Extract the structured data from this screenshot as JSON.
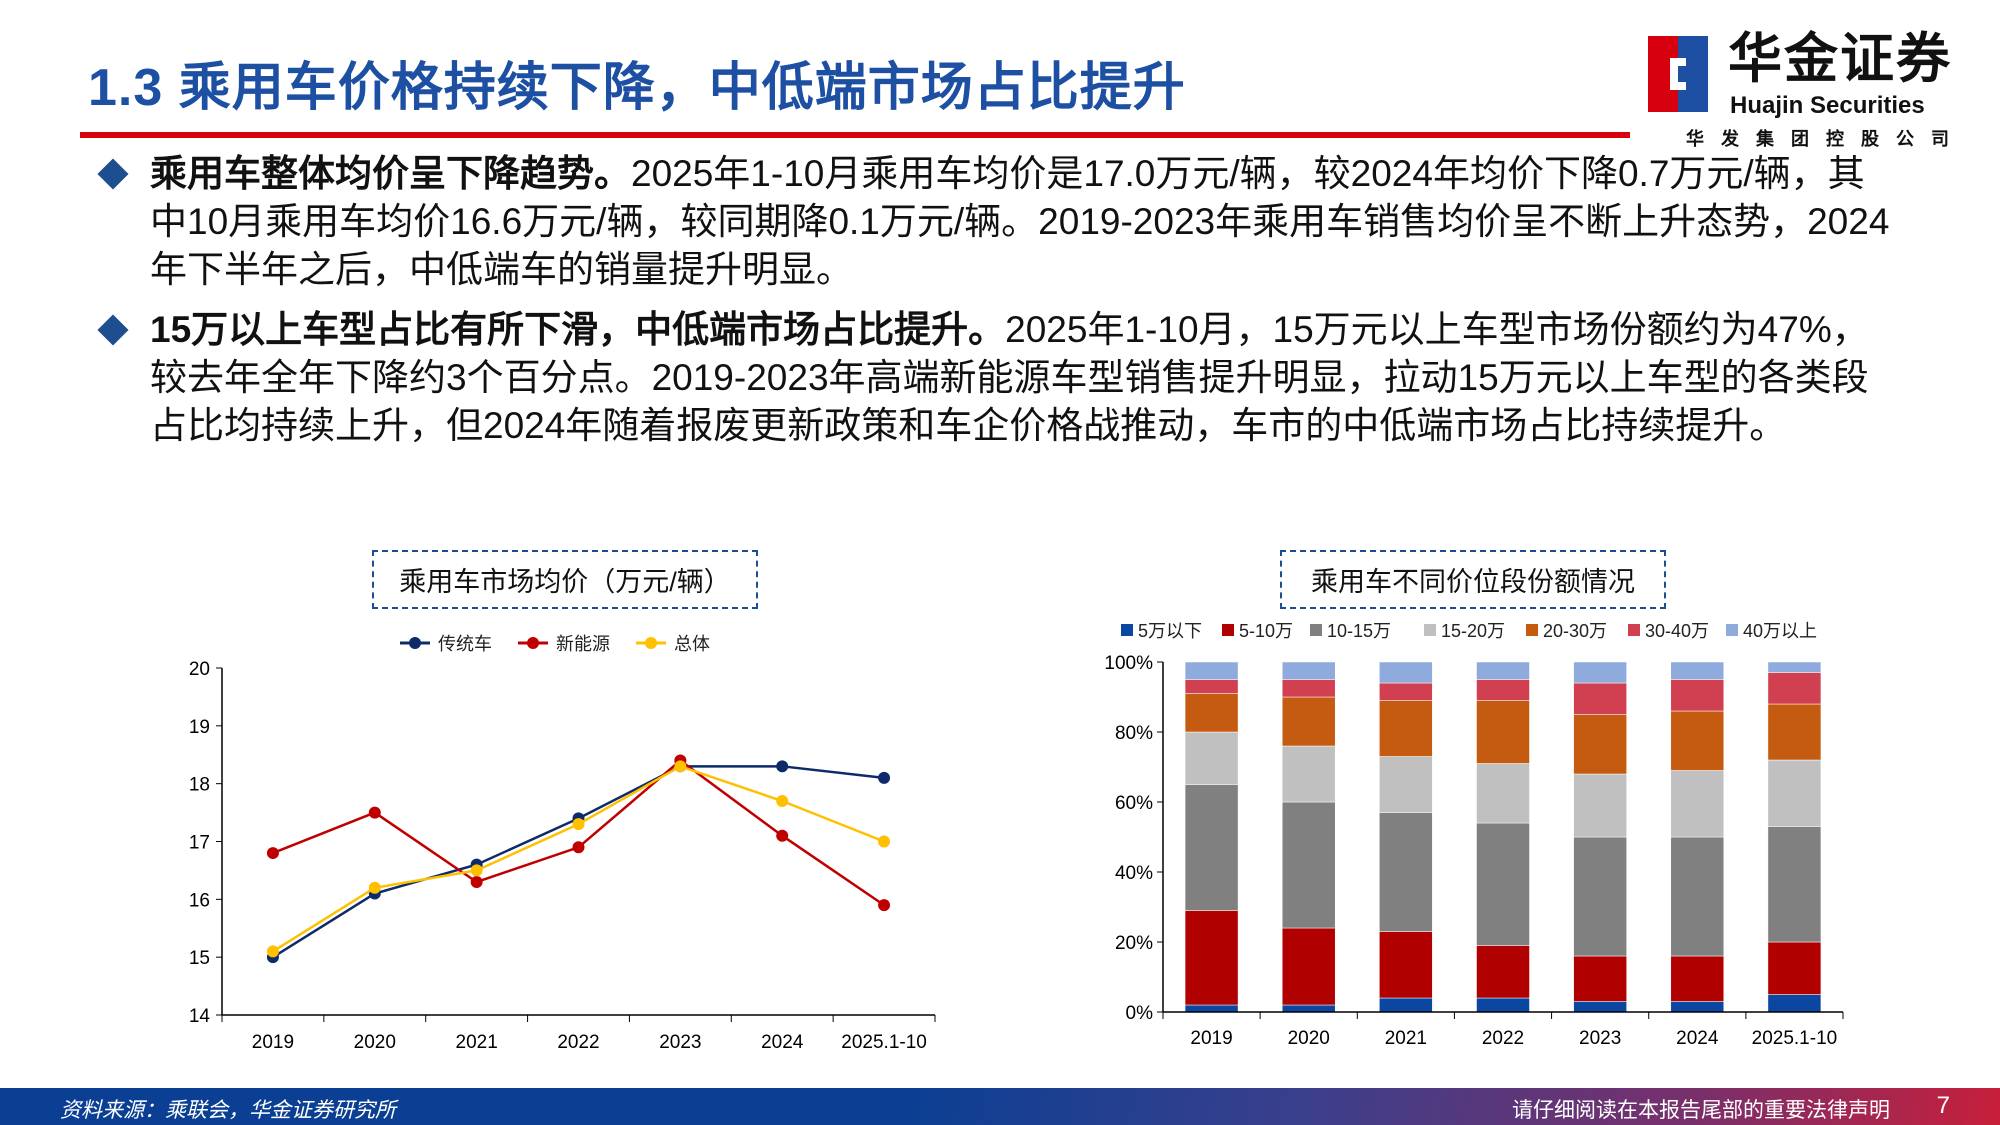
{
  "header": {
    "title": "1.3 乘用车价格持续下降，中低端市场占比提升",
    "logo": {
      "name_cn": "华金证券",
      "name_en": "Huajin Securities",
      "parent": "华发集团控股公司",
      "colors": {
        "red": "#d7000f",
        "blue": "#1d50a2"
      }
    }
  },
  "bullets": [
    {
      "bold": "乘用车整体均价呈下降趋势。",
      "text": "2025年1-10月乘用车均价是17.0万元/辆，较2024年均价下降0.7万元/辆，其中10月乘用车均价16.6万元/辆，较同期降0.1万元/辆。2019-2023年乘用车销售均价呈不断上升态势，2024年下半年之后，中低端车的销量提升明显。"
    },
    {
      "bold": "15万以上车型占比有所下滑，中低端市场占比提升。",
      "text": "2025年1-10月，15万元以上车型市场份额约为47%，较去年全年下降约3个百分点。2019-2023年高端新能源车型销售提升明显，拉动15万元以上车型的各类段占比均持续上升，但2024年随着报废更新政策和车企价格战推动，车市的中低端市场占比持续提升。"
    }
  ],
  "chart_data": [
    {
      "type": "line",
      "title": "乘用车市场均价（万元/辆）",
      "categories": [
        "2019",
        "2020",
        "2021",
        "2022",
        "2023",
        "2024",
        "2025.1-10"
      ],
      "ylim": [
        14,
        20
      ],
      "yticks": [
        "14",
        "15",
        "16",
        "17",
        "18",
        "19",
        "20"
      ],
      "legend_position": "top",
      "grid": false,
      "series": [
        {
          "name": "传统车",
          "color": "#0d2a6b",
          "values": [
            15.0,
            16.1,
            16.6,
            17.4,
            18.3,
            18.3,
            18.1
          ]
        },
        {
          "name": "新能源",
          "color": "#c00000",
          "values": [
            16.8,
            17.5,
            16.3,
            16.9,
            18.4,
            17.1,
            15.9
          ]
        },
        {
          "name": "总体",
          "color": "#ffc000",
          "values": [
            15.1,
            16.2,
            16.5,
            17.3,
            18.3,
            17.7,
            17.0
          ]
        }
      ]
    },
    {
      "type": "bar",
      "stacked": true,
      "title": "乘用车不同价位段份额情况",
      "categories": [
        "2019",
        "2020",
        "2021",
        "2022",
        "2023",
        "2024",
        "2025.1-10"
      ],
      "ylim": [
        0,
        100
      ],
      "yticks": [
        "0%",
        "20%",
        "40%",
        "60%",
        "80%",
        "100%"
      ],
      "legend_position": "top",
      "grid": false,
      "series": [
        {
          "name": "5万以下",
          "color": "#0b47a1",
          "values": [
            2,
            2,
            4,
            4,
            3,
            3,
            5
          ]
        },
        {
          "name": "5-10万",
          "color": "#b00000",
          "values": [
            27,
            22,
            19,
            15,
            13,
            13,
            15
          ]
        },
        {
          "name": "10-15万",
          "color": "#808080",
          "values": [
            36,
            36,
            34,
            35,
            34,
            34,
            33
          ]
        },
        {
          "name": "15-20万",
          "color": "#c0c0c0",
          "values": [
            15,
            16,
            16,
            17,
            18,
            19,
            19
          ]
        },
        {
          "name": "20-30万",
          "color": "#c55a11",
          "values": [
            11,
            14,
            16,
            18,
            17,
            17,
            16
          ]
        },
        {
          "name": "30-40万",
          "color": "#d04050",
          "values": [
            4,
            5,
            5,
            6,
            9,
            9,
            9
          ]
        },
        {
          "name": "40万以上",
          "color": "#8faadc",
          "values": [
            5,
            5,
            6,
            5,
            6,
            5,
            3
          ]
        }
      ]
    }
  ],
  "footer": {
    "source": "资料来源：乘联会，华金证券研究所",
    "disclaimer": "请仔细阅读在本报告尾部的重要法律声明",
    "page": "7"
  }
}
